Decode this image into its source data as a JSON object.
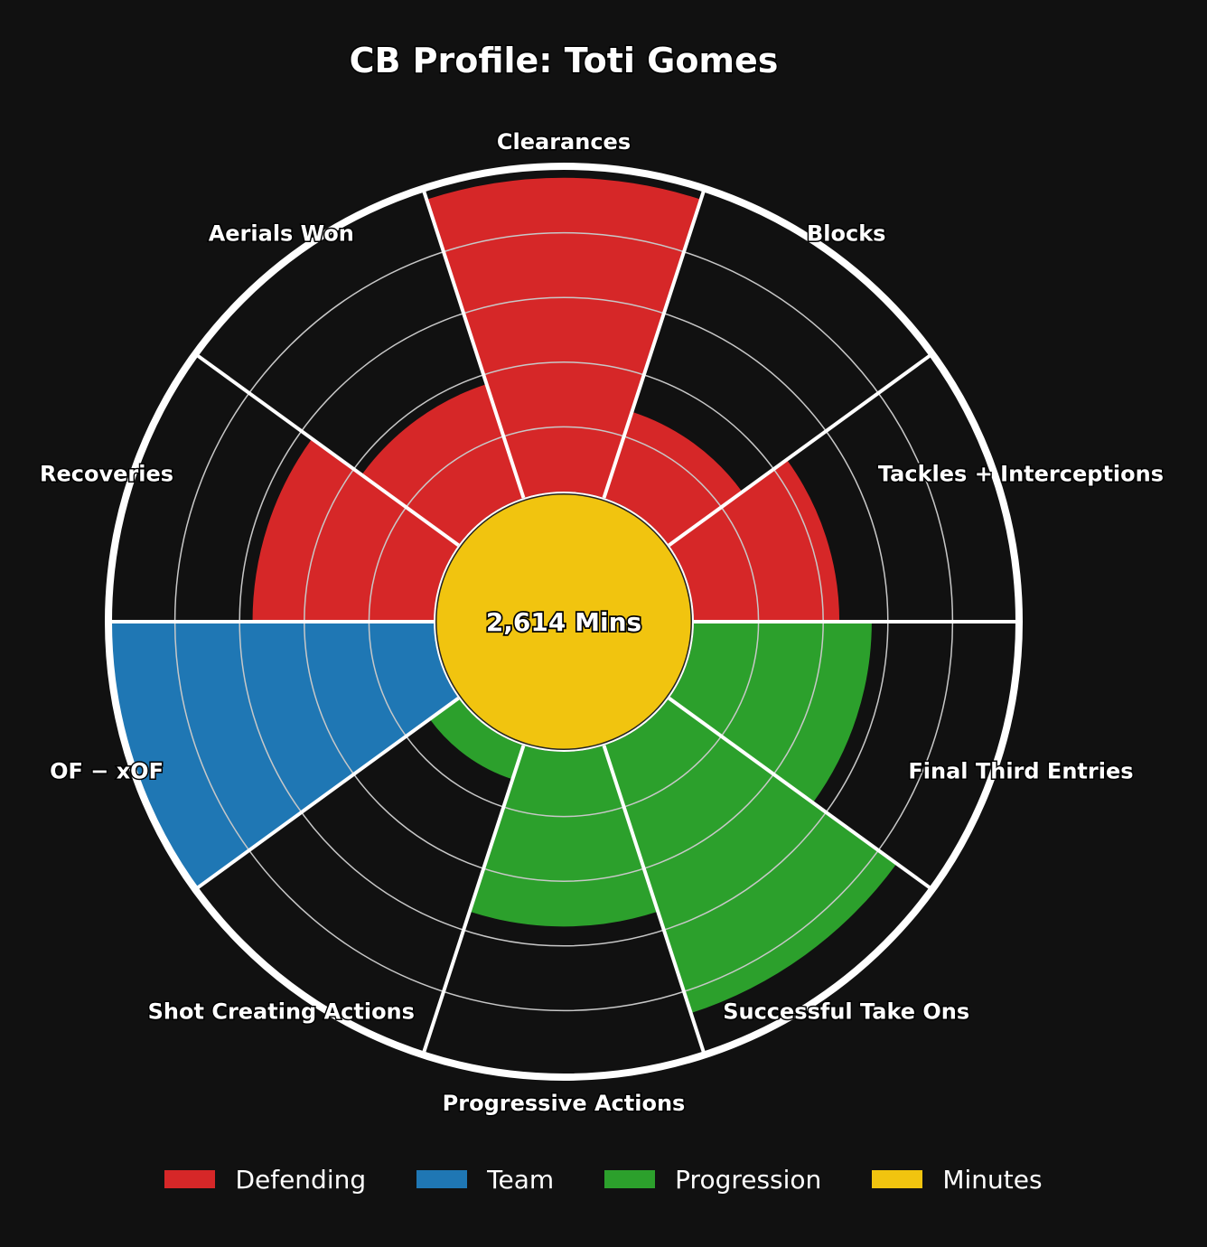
{
  "chart_data": {
    "type": "polar-bar",
    "title": "CB Profile: Toti Gomes",
    "center_label": "2,614 Mins",
    "rlim": [
      0,
      100
    ],
    "grid": true,
    "legend_position": "bottom",
    "categories": [
      {
        "label": "Clearances",
        "value": 97,
        "group": "Defending"
      },
      {
        "label": "Blocks",
        "value": 28,
        "group": "Defending"
      },
      {
        "label": "Tackles + Interceptions",
        "value": 45,
        "group": "Defending"
      },
      {
        "label": "Final Third Entries",
        "value": 55,
        "group": "Progression"
      },
      {
        "label": "Successful Take Ons",
        "value": 87,
        "group": "Progression"
      },
      {
        "label": "Progressive Actions",
        "value": 54,
        "group": "Progression"
      },
      {
        "label": "Shot Creating Actions",
        "value": 11,
        "group": "Progression"
      },
      {
        "label": "OF − xOF",
        "value": 100,
        "group": "Team"
      },
      {
        "label": "Recoveries",
        "value": 56,
        "group": "Defending"
      },
      {
        "label": "Aerials Won",
        "value": 37,
        "group": "Defending"
      }
    ],
    "groups": [
      {
        "name": "Defending",
        "color": "#d62728"
      },
      {
        "name": "Team",
        "color": "#1f77b4"
      },
      {
        "name": "Progression",
        "color": "#2ca02c"
      },
      {
        "name": "Minutes",
        "color": "#f1c40f"
      }
    ]
  }
}
